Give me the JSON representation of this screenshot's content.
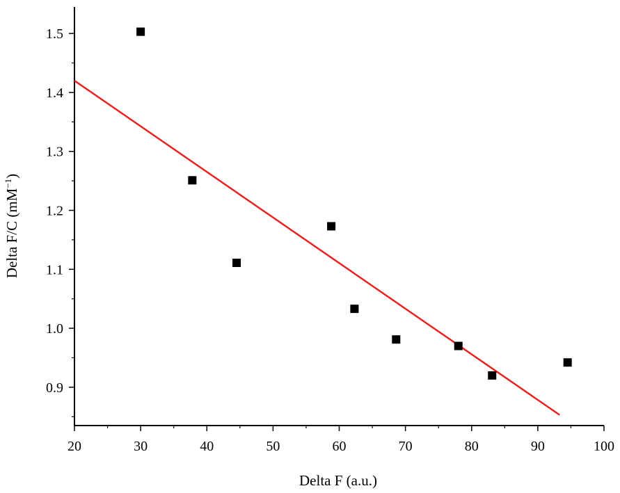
{
  "chart_data": {
    "type": "scatter",
    "xlabel": "Delta F (a.u.)",
    "ylabel": "Delta F/C (mM",
    "ylabel_sup": "−1",
    "ylabel_close": ")",
    "xlim": [
      20,
      100
    ],
    "ylim": [
      0.835,
      1.545
    ],
    "x_ticks": [
      20,
      30,
      40,
      50,
      60,
      70,
      80,
      90,
      100
    ],
    "x_tick_labels": [
      "20",
      "30",
      "40",
      "50",
      "60",
      "70",
      "80",
      "90",
      "100"
    ],
    "y_ticks": [
      0.9,
      1.0,
      1.1,
      1.2,
      1.3,
      1.4,
      1.5
    ],
    "y_tick_labels": [
      "0.9",
      "1.0",
      "1.1",
      "1.2",
      "1.3",
      "1.4",
      "1.5"
    ],
    "grid": false,
    "series": [
      {
        "kind": "points",
        "color": "#000000",
        "marker": "square",
        "x": [
          30.0,
          37.8,
          44.5,
          58.8,
          62.3,
          68.6,
          78.0,
          83.1,
          94.5
        ],
        "y": [
          1.503,
          1.251,
          1.111,
          1.173,
          1.033,
          0.981,
          0.97,
          0.92,
          0.942
        ]
      },
      {
        "kind": "fit-line",
        "color": "#e8201e",
        "x": [
          20,
          93.3
        ],
        "y": [
          1.42,
          0.853
        ]
      }
    ]
  }
}
